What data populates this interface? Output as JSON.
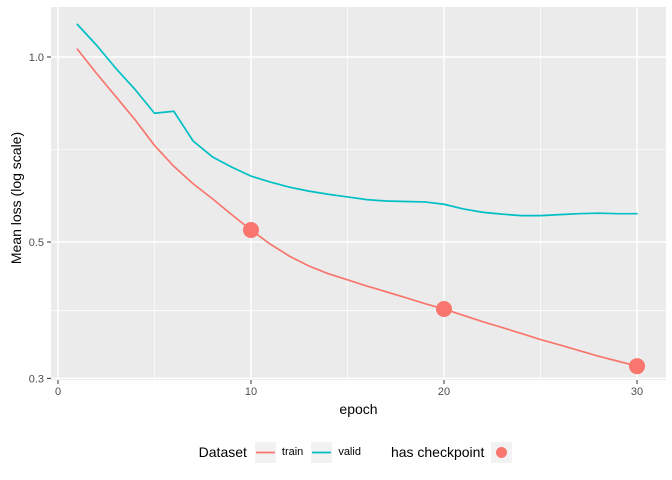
{
  "chart_data": {
    "type": "line",
    "title": "",
    "xlabel": "epoch",
    "ylabel": "Mean loss (log scale)",
    "x": [
      1,
      2,
      3,
      4,
      5,
      6,
      7,
      8,
      9,
      10,
      11,
      12,
      13,
      14,
      15,
      16,
      17,
      18,
      19,
      20,
      21,
      22,
      23,
      24,
      25,
      26,
      27,
      28,
      29,
      30
    ],
    "series": [
      {
        "name": "train",
        "color": "#F8766D",
        "values": [
          1.03,
          0.94,
          0.862,
          0.79,
          0.718,
          0.664,
          0.622,
          0.588,
          0.554,
          0.523,
          0.496,
          0.474,
          0.457,
          0.444,
          0.434,
          0.424,
          0.415,
          0.406,
          0.397,
          0.389,
          0.38,
          0.371,
          0.363,
          0.355,
          0.347,
          0.34,
          0.333,
          0.326,
          0.32,
          0.314
        ]
      },
      {
        "name": "valid",
        "color": "#00BFC4",
        "values": [
          1.13,
          1.045,
          0.958,
          0.885,
          0.81,
          0.816,
          0.73,
          0.688,
          0.662,
          0.64,
          0.626,
          0.614,
          0.605,
          0.598,
          0.592,
          0.586,
          0.583,
          0.582,
          0.581,
          0.576,
          0.566,
          0.559,
          0.555,
          0.552,
          0.552,
          0.554,
          0.556,
          0.557,
          0.556,
          0.556
        ]
      }
    ],
    "checkpoints": {
      "label": "has checkpoint",
      "on_series": "train",
      "epochs": [
        10,
        20,
        30
      ],
      "values": [
        0.523,
        0.389,
        0.314
      ],
      "color": "#F8766D"
    },
    "x_axis": {
      "ticks": [
        0,
        10,
        20,
        30
      ],
      "tick_labels": [
        "0",
        "10",
        "20",
        "30"
      ],
      "minor_ticks": [
        5,
        15,
        25
      ]
    },
    "y_axis": {
      "scale": "log10",
      "ticks": [
        1.0,
        0.5,
        0.3
      ],
      "tick_labels": [
        "1.0",
        "0.5",
        "0.3"
      ],
      "minor_ticks": [
        0.707,
        0.387
      ]
    },
    "legend": {
      "position": "bottom",
      "title": "Dataset",
      "items": [
        "train",
        "valid"
      ],
      "checkpoint_label": "has checkpoint"
    },
    "style": {
      "panel_bg": "#EBEBEB",
      "grid_color": "#FFFFFF",
      "key_bg": "#F2F2F2",
      "tick_text_color": "#4D4D4D",
      "tick_mark_color": "#333333"
    }
  }
}
